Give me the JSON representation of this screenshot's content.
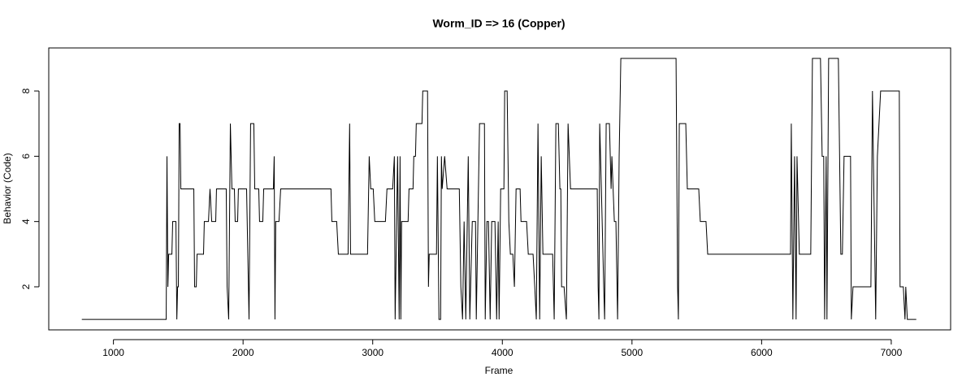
{
  "chart_data": {
    "type": "line",
    "title": "Worm_ID => 16 (Copper)",
    "x_label": "Frame",
    "y_label": "Behavior (Code)",
    "xlim": [
      501,
      7458
    ],
    "ylim": [
      0.68,
      9.32
    ],
    "xticks": [
      1000,
      2000,
      3000,
      4000,
      5000,
      6000,
      7000
    ],
    "yticks": [
      2,
      4,
      6,
      8
    ],
    "series": [
      {
        "color": "#000000",
        "x": [
          756,
          1407,
          1413,
          1420,
          1426,
          1451,
          1457,
          1482,
          1489,
          1495,
          1501,
          1507,
          1514,
          1520,
          1620,
          1626,
          1639,
          1645,
          1695,
          1701,
          1733,
          1745,
          1758,
          1789,
          1795,
          1870,
          1877,
          1889,
          1902,
          1914,
          1933,
          1939,
          1958,
          1964,
          2027,
          2046,
          2058,
          2083,
          2090,
          2121,
          2127,
          2152,
          2159,
          2234,
          2240,
          2246,
          2252,
          2277,
          2290,
          2678,
          2685,
          2722,
          2735,
          2810,
          2822,
          2829,
          2960,
          2973,
          2985,
          3004,
          3016,
          3098,
          3110,
          3154,
          3167,
          3173,
          3192,
          3204,
          3211,
          3217,
          3223,
          3273,
          3280,
          3311,
          3317,
          3330,
          3336,
          3380,
          3386,
          3423,
          3430,
          3436,
          3492,
          3499,
          3511,
          3524,
          3530,
          3536,
          3555,
          3574,
          3668,
          3680,
          3693,
          3705,
          3718,
          3737,
          3749,
          3768,
          3793,
          3799,
          3824,
          3862,
          3868,
          3881,
          3893,
          3906,
          3918,
          3943,
          3956,
          3968,
          3975,
          3987,
          4012,
          4018,
          4037,
          4050,
          4062,
          4081,
          4093,
          4106,
          4137,
          4144,
          4187,
          4200,
          4237,
          4250,
          4262,
          4275,
          4288,
          4300,
          4313,
          4388,
          4400,
          4413,
          4432,
          4444,
          4451,
          4457,
          4476,
          4494,
          4507,
          4526,
          4732,
          4739,
          4745,
          4751,
          4764,
          4782,
          4789,
          4801,
          4826,
          4839,
          4845,
          4864,
          4876,
          4889,
          4901,
          4914,
          5340,
          5352,
          5358,
          5365,
          5415,
          5427,
          5515,
          5527,
          5571,
          5584,
          6223,
          6229,
          6241,
          6254,
          6266,
          6273,
          6291,
          6379,
          6392,
          6454,
          6467,
          6479,
          6486,
          6498,
          6504,
          6517,
          6592,
          6611,
          6623,
          6636,
          6686,
          6692,
          6705,
          6843,
          6855,
          6880,
          6893,
          6918,
          7062,
          7068,
          7093,
          7106,
          7112,
          7124,
          7193
        ],
        "values": [
          1,
          1,
          6,
          2,
          3,
          3,
          4,
          4,
          1,
          2,
          2,
          7,
          7,
          5,
          5,
          2,
          2,
          3,
          3,
          4,
          4,
          5,
          4,
          4,
          5,
          5,
          2,
          1,
          7,
          5,
          5,
          4,
          4,
          5,
          5,
          1,
          7,
          7,
          5,
          5,
          4,
          4,
          5,
          5,
          6,
          1,
          4,
          4,
          5,
          5,
          4,
          4,
          3,
          3,
          7,
          3,
          3,
          6,
          5,
          5,
          4,
          4,
          5,
          5,
          6,
          1,
          6,
          1,
          6,
          1,
          4,
          4,
          5,
          5,
          6,
          6,
          7,
          7,
          8,
          8,
          2,
          3,
          3,
          6,
          1,
          1,
          6,
          5,
          6,
          5,
          5,
          2,
          1,
          4,
          1,
          6,
          1,
          4,
          4,
          1,
          7,
          7,
          1,
          4,
          4,
          1,
          4,
          4,
          1,
          4,
          1,
          5,
          5,
          8,
          8,
          4,
          3,
          3,
          2,
          5,
          5,
          4,
          4,
          3,
          3,
          2,
          1,
          7,
          1,
          6,
          3,
          3,
          1,
          7,
          7,
          5,
          5,
          2,
          2,
          1,
          7,
          5,
          5,
          2,
          1,
          7,
          5,
          2,
          1,
          7,
          7,
          5,
          6,
          4,
          4,
          1,
          6,
          9,
          9,
          2,
          1,
          7,
          7,
          5,
          5,
          4,
          4,
          3,
          3,
          7,
          1,
          6,
          1,
          6,
          3,
          3,
          9,
          9,
          6,
          6,
          1,
          6,
          1,
          9,
          9,
          3,
          3,
          6,
          6,
          1,
          2,
          2,
          8,
          1,
          6,
          8,
          8,
          2,
          2,
          1,
          2,
          1,
          1
        ]
      }
    ]
  }
}
